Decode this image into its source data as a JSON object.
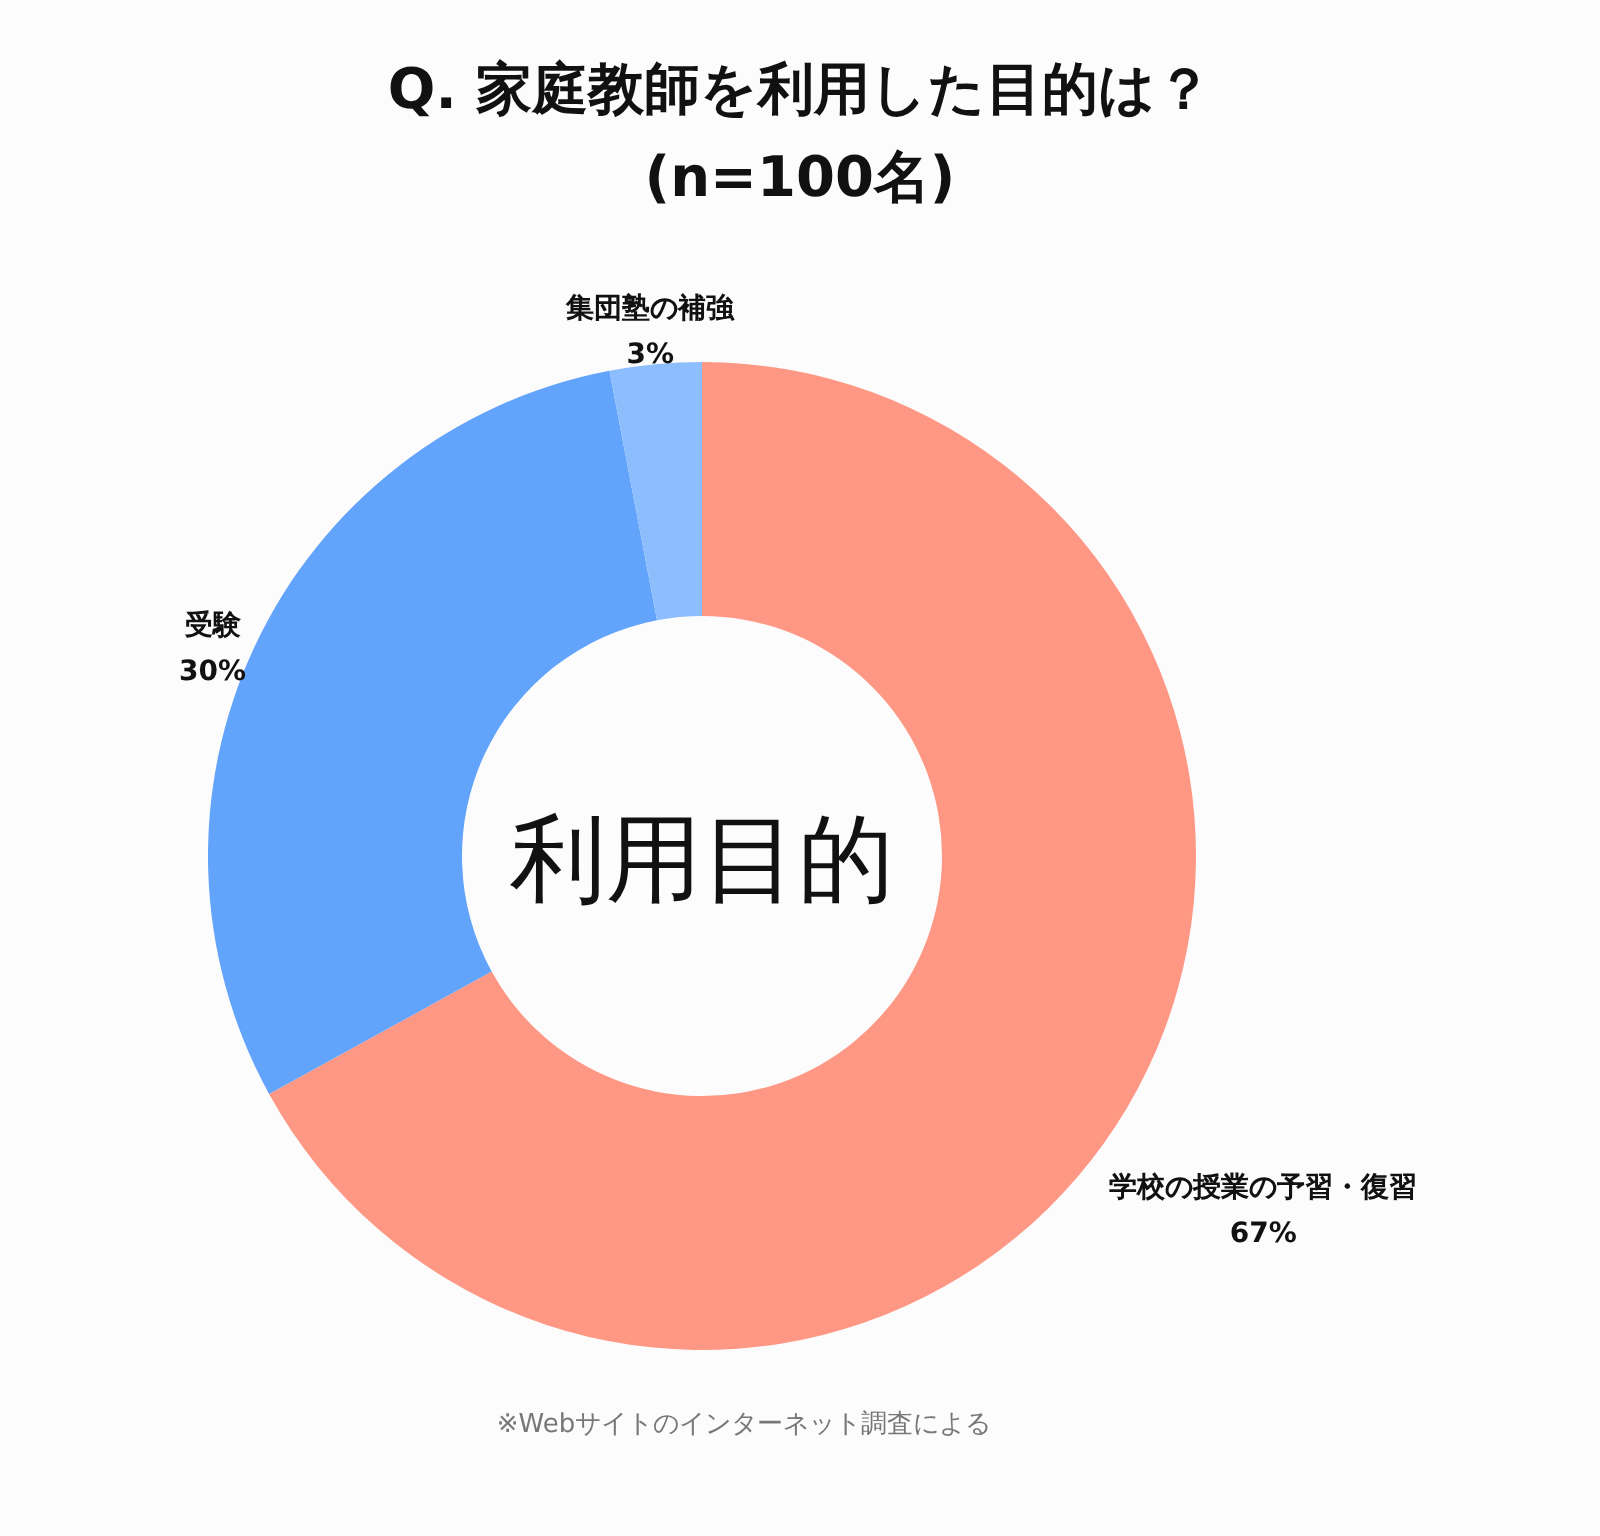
{
  "chart_data": {
    "type": "donut",
    "title": "Q. 家庭教師を利用した目的は？\n(n=100名)",
    "categories": [
      "学校の授業の予習・復習",
      "受験",
      "集団塾の補強"
    ],
    "values": [
      67,
      30,
      3
    ],
    "colors": [
      "#fe9885",
      "#62a4fb",
      "#8cbdfc"
    ],
    "value_labels": [
      "67%",
      "30%",
      "3%"
    ],
    "annotations": [
      "利用目的",
      "※Webサイトのインターネット調査による"
    ]
  }
}
